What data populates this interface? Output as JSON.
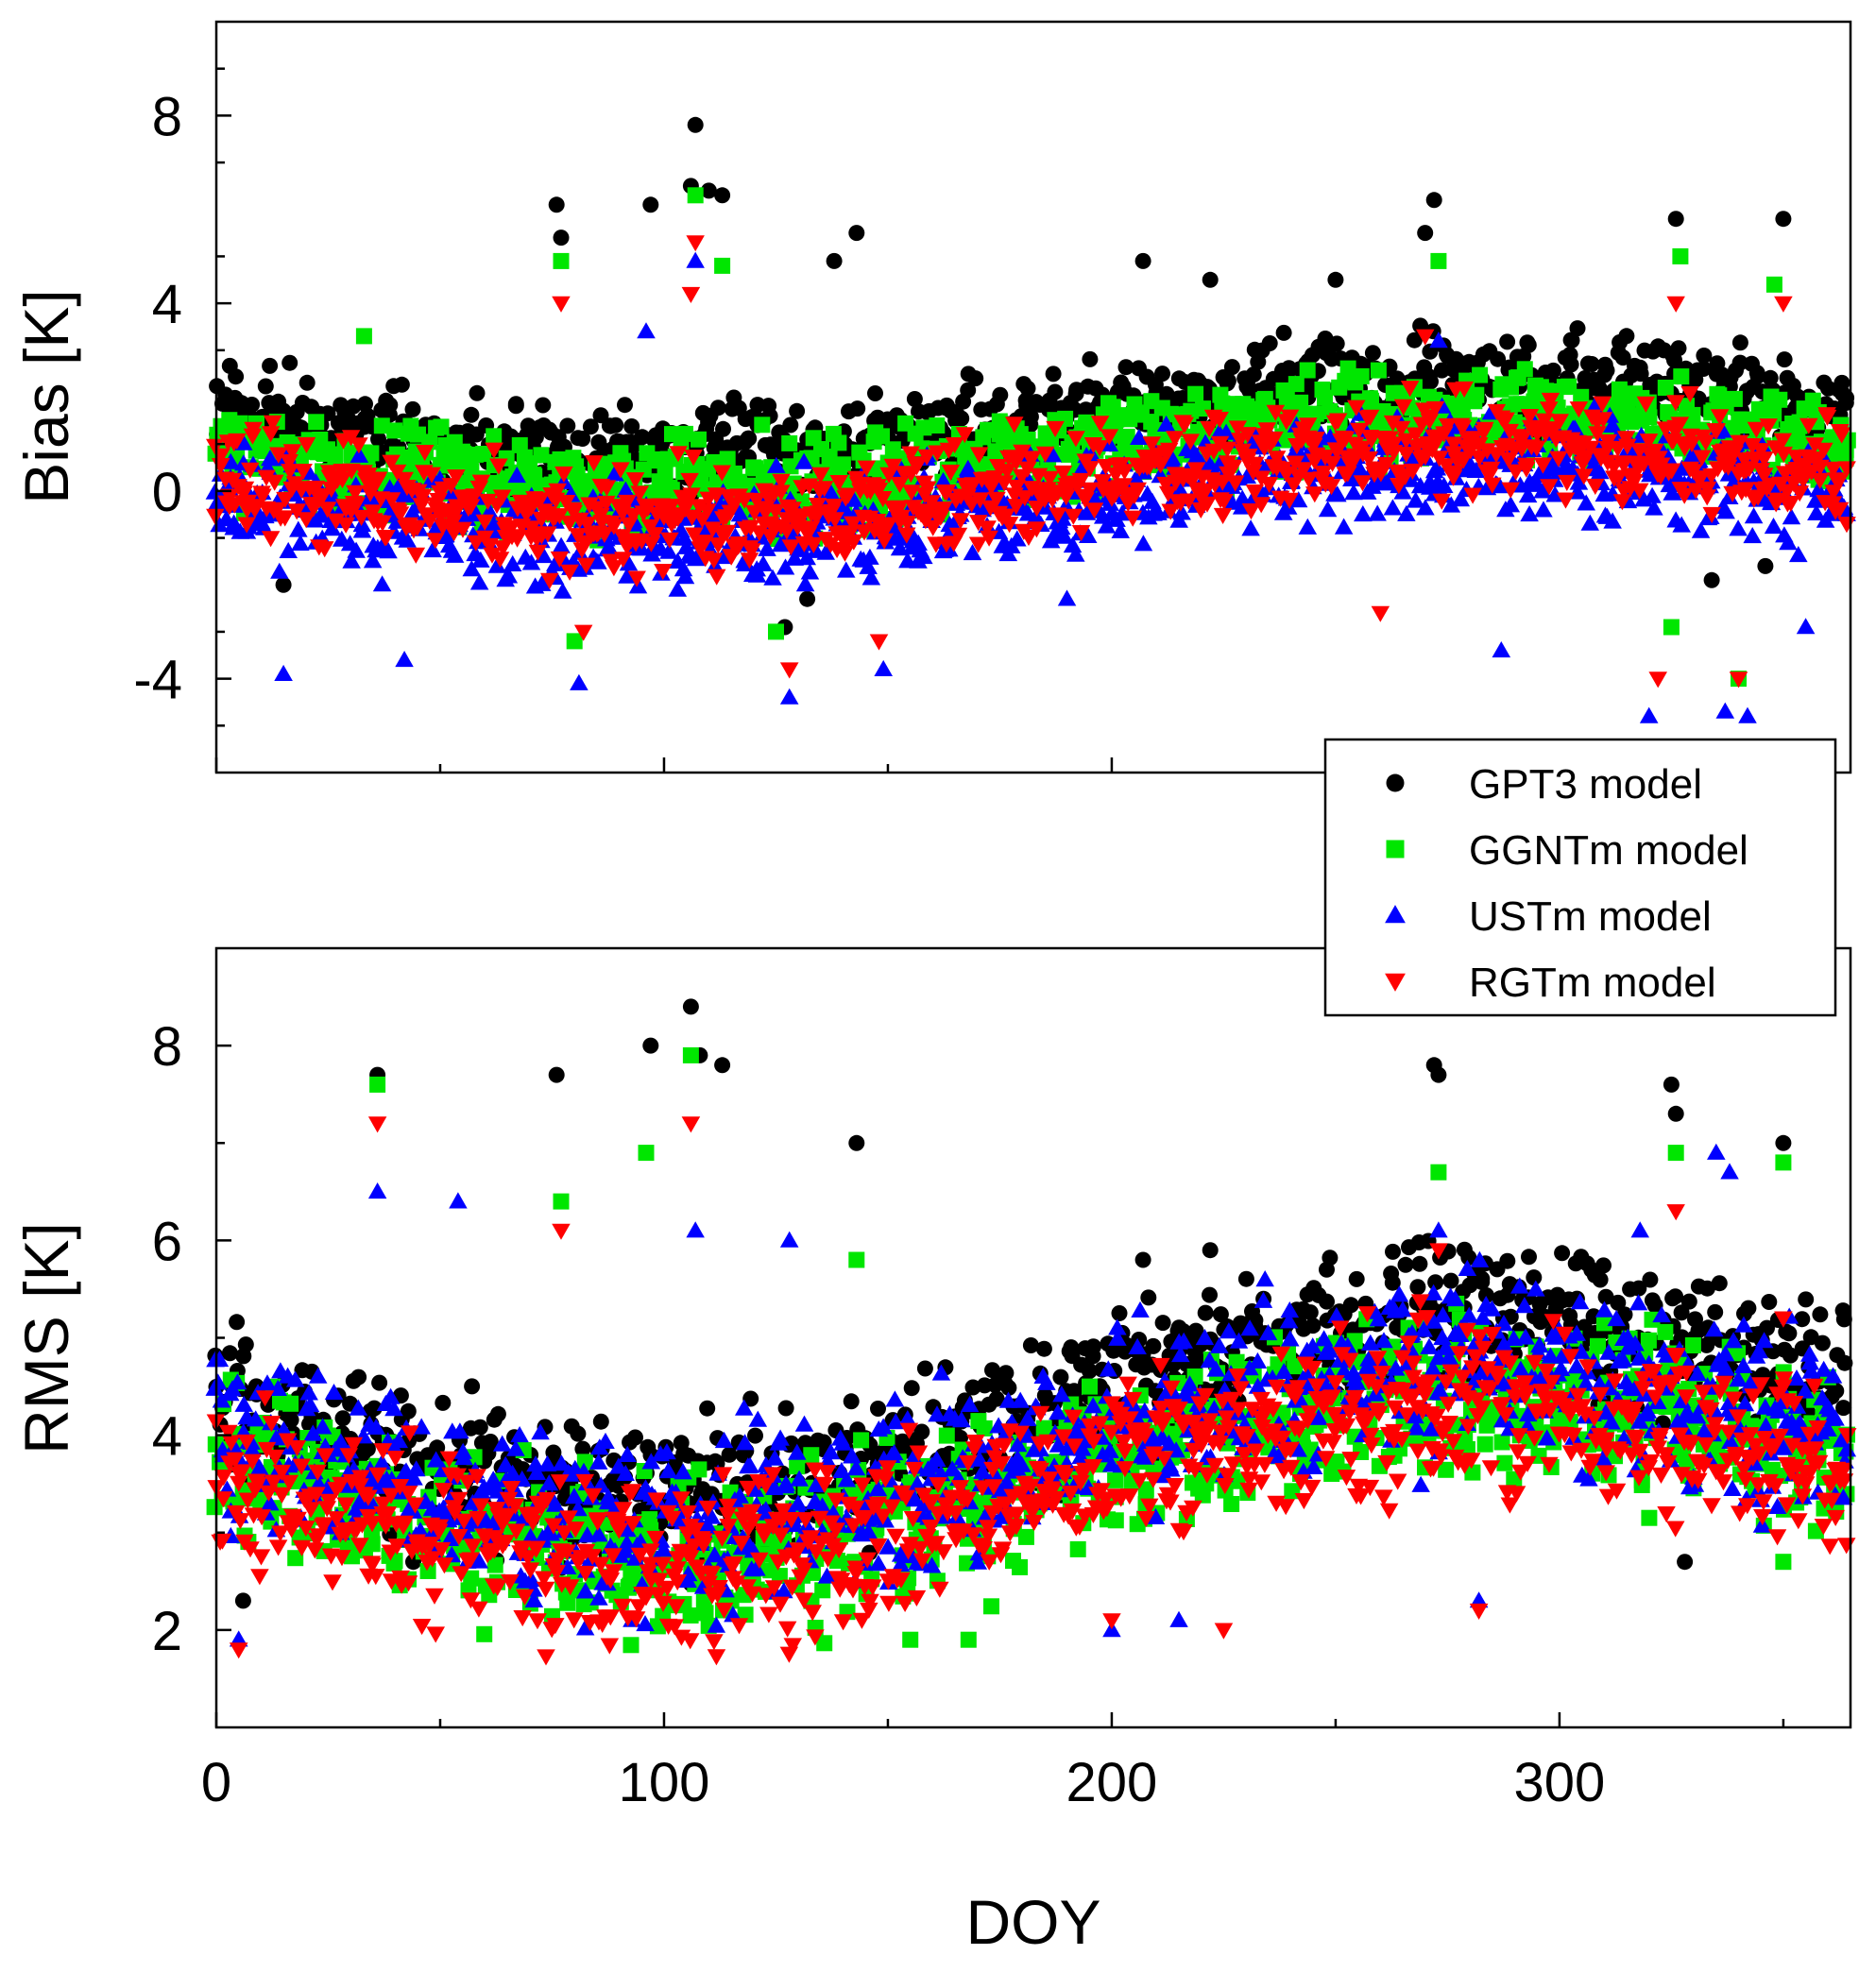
{
  "chart_data": [
    {
      "type": "scatter",
      "panel": "top",
      "title": "",
      "xlabel": "",
      "ylabel": "Bias [K]",
      "xlim": [
        0,
        365
      ],
      "ylim": [
        -6,
        10
      ],
      "xticks": [
        0,
        100,
        200,
        300
      ],
      "yticks": [
        -4,
        0,
        4,
        8
      ],
      "ytick_labels": [
        "-4",
        "0",
        "4",
        "8"
      ],
      "grid": false,
      "series": [
        {
          "name": "GPT3 model",
          "color": "#000000",
          "marker": "circle",
          "shape": {
            "offset": 1.6,
            "amp": 1.4,
            "noise": 1.5,
            "spikes": [
              [
                107,
                7.8
              ],
              [
                110,
                6.4
              ],
              [
                113,
                6.3
              ],
              [
                106,
                6.5
              ],
              [
                97,
                6.1
              ],
              [
                76,
                6.1
              ],
              [
                77,
                5.4
              ],
              [
                143,
                5.5
              ],
              [
                138,
                4.9
              ],
              [
                207,
                4.9
              ],
              [
                272,
                6.2
              ],
              [
                270,
                5.5
              ],
              [
                326,
                5.8
              ],
              [
                350,
                5.8
              ],
              [
                222,
                4.5
              ],
              [
                250,
                4.5
              ],
              [
                127,
                -2.9
              ],
              [
                132,
                -2.3
              ],
              [
                334,
                -1.9
              ],
              [
                346,
                -1.6
              ],
              [
                15,
                -2.0
              ],
              [
                145,
                -0.4
              ]
            ]
          }
        },
        {
          "name": "GGNTm model",
          "color": "#00e600",
          "marker": "square",
          "shape": {
            "offset": 0.8,
            "amp": 1.3,
            "noise": 1.5,
            "spikes": [
              [
                107,
                6.3
              ],
              [
                113,
                4.8
              ],
              [
                77,
                4.9
              ],
              [
                273,
                4.9
              ],
              [
                327,
                5.0
              ],
              [
                348,
                4.4
              ],
              [
                33,
                3.3
              ],
              [
                125,
                -3.0
              ],
              [
                80,
                -3.2
              ],
              [
                325,
                -2.9
              ],
              [
                340,
                -4.0
              ]
            ]
          }
        },
        {
          "name": "USTm model",
          "color": "#0000ff",
          "marker": "triangle-up",
          "shape": {
            "offset": -0.2,
            "amp": 1.3,
            "noise": 1.6,
            "spikes": [
              [
                107,
                4.9
              ],
              [
                96,
                3.4
              ],
              [
                273,
                3.2
              ],
              [
                15,
                -3.9
              ],
              [
                42,
                -3.6
              ],
              [
                81,
                -4.1
              ],
              [
                128,
                -4.4
              ],
              [
                149,
                -3.8
              ],
              [
                320,
                -4.8
              ],
              [
                337,
                -4.7
              ],
              [
                342,
                -4.8
              ],
              [
                355,
                -2.9
              ],
              [
                190,
                -2.3
              ],
              [
                287,
                -3.4
              ]
            ]
          }
        },
        {
          "name": "RGTm model",
          "color": "#ff0000",
          "marker": "triangle-down",
          "shape": {
            "offset": 0.2,
            "amp": 1.3,
            "noise": 1.6,
            "spikes": [
              [
                107,
                5.3
              ],
              [
                106,
                4.2
              ],
              [
                77,
                4.0
              ],
              [
                270,
                3.3
              ],
              [
                326,
                4.0
              ],
              [
                350,
                4.0
              ],
              [
                128,
                -3.8
              ],
              [
                148,
                -3.2
              ],
              [
                82,
                -3.0
              ],
              [
                322,
                -4.0
              ],
              [
                340,
                -4.0
              ],
              [
                260,
                -2.6
              ]
            ]
          }
        }
      ]
    },
    {
      "type": "scatter",
      "panel": "bottom",
      "title": "",
      "xlabel": "DOY",
      "ylabel": "RMS [K]",
      "xlim": [
        0,
        365
      ],
      "ylim": [
        1,
        9
      ],
      "xticks": [
        0,
        100,
        200,
        300
      ],
      "xtick_labels": [
        "0",
        "100",
        "200",
        "300"
      ],
      "yticks": [
        2,
        4,
        6,
        8
      ],
      "ytick_labels": [
        "2",
        "4",
        "6",
        "8"
      ],
      "grid": false,
      "series": [
        {
          "name": "GPT3 model",
          "color": "#000000",
          "marker": "circle",
          "shape": {
            "offset": 4.3,
            "amp": 0.9,
            "noise": 1.1,
            "spikes": [
              [
                106,
                8.4
              ],
              [
                97,
                8.0
              ],
              [
                108,
                7.9
              ],
              [
                113,
                7.8
              ],
              [
                36,
                7.7
              ],
              [
                76,
                7.7
              ],
              [
                143,
                7.0
              ],
              [
                272,
                7.8
              ],
              [
                273,
                7.7
              ],
              [
                325,
                7.6
              ],
              [
                326,
                7.3
              ],
              [
                350,
                7.0
              ],
              [
                207,
                5.8
              ],
              [
                222,
                5.9
              ],
              [
                248,
                5.7
              ],
              [
                6,
                2.3
              ],
              [
                44,
                2.7
              ],
              [
                328,
                2.7
              ]
            ]
          }
        },
        {
          "name": "GGNTm model",
          "color": "#00e600",
          "marker": "square",
          "shape": {
            "offset": 3.6,
            "amp": 0.8,
            "noise": 1.2,
            "spikes": [
              [
                36,
                7.6
              ],
              [
                96,
                6.9
              ],
              [
                106,
                7.9
              ],
              [
                273,
                6.7
              ],
              [
                326,
                6.9
              ],
              [
                350,
                6.8
              ],
              [
                143,
                5.8
              ],
              [
                77,
                6.4
              ],
              [
                155,
                1.9
              ],
              [
                168,
                1.9
              ],
              [
                115,
                2.3
              ],
              [
                350,
                2.7
              ]
            ]
          }
        },
        {
          "name": "USTm model",
          "color": "#0000ff",
          "marker": "triangle-up",
          "shape": {
            "offset": 3.9,
            "amp": 0.8,
            "noise": 1.3,
            "spikes": [
              [
                36,
                6.5
              ],
              [
                54,
                6.4
              ],
              [
                335,
                6.9
              ],
              [
                338,
                6.7
              ],
              [
                273,
                6.1
              ],
              [
                318,
                6.1
              ],
              [
                128,
                6.0
              ],
              [
                107,
                6.1
              ],
              [
                5,
                1.9
              ],
              [
                200,
                2.0
              ],
              [
                215,
                2.1
              ],
              [
                282,
                2.3
              ]
            ]
          }
        },
        {
          "name": "RGTm model",
          "color": "#ff0000",
          "marker": "triangle-down",
          "shape": {
            "offset": 3.5,
            "amp": 0.8,
            "noise": 1.2,
            "spikes": [
              [
                36,
                7.2
              ],
              [
                106,
                7.2
              ],
              [
                77,
                6.1
              ],
              [
                273,
                5.9
              ],
              [
                326,
                6.3
              ],
              [
                350,
                5.2
              ],
              [
                5,
                1.8
              ],
              [
                200,
                2.1
              ],
              [
                225,
                2.0
              ],
              [
                282,
                2.2
              ],
              [
                103,
                2.5
              ]
            ]
          }
        }
      ]
    }
  ],
  "legend": {
    "placement": "between panels, right",
    "entries": [
      "GPT3 model",
      "GGNTm model",
      "USTm model",
      "RGTm model"
    ]
  }
}
